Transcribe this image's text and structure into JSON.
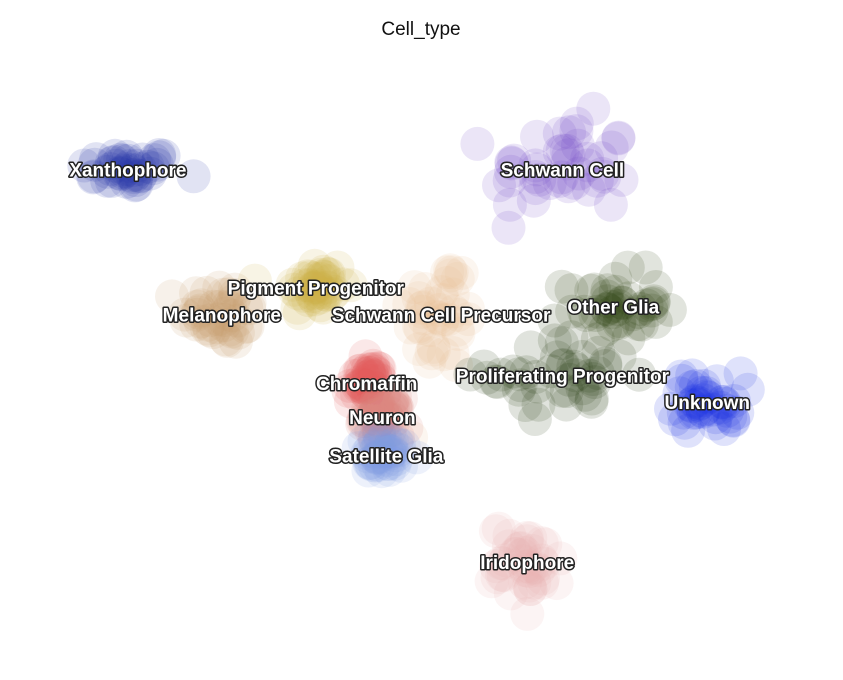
{
  "chart_data": {
    "type": "scatter",
    "title": "Cell_type",
    "xlabel": "",
    "ylabel": "",
    "grid": false,
    "legend": "on-data",
    "xlim": [
      -10,
      10
    ],
    "ylim": [
      -8,
      8
    ],
    "series": [
      {
        "name": "Xanthophore",
        "color": "#2d3aa8",
        "center": [
          -7.5,
          5.0
        ],
        "spread": [
          1.1,
          0.45
        ]
      },
      {
        "name": "Melanophore",
        "color": "#c49a6c",
        "center": [
          -5.1,
          1.2
        ],
        "spread": [
          0.9,
          0.75
        ]
      },
      {
        "name": "Pigment Progenitor",
        "color": "#cdb24a",
        "center": [
          -2.7,
          1.9
        ],
        "spread": [
          0.7,
          0.7
        ]
      },
      {
        "name": "Schwann Cell Precursor",
        "color": "#e8bf94",
        "center": [
          0.5,
          1.2
        ],
        "spread": [
          0.9,
          1.4
        ]
      },
      {
        "name": "Schwann Cell",
        "color": "#7444c8",
        "center": [
          3.6,
          5.0
        ],
        "spread": [
          1.6,
          1.2
        ]
      },
      {
        "name": "Other Glia",
        "color": "#2c3d0e",
        "center": [
          4.9,
          1.4
        ],
        "spread": [
          1.1,
          0.8
        ]
      },
      {
        "name": "Proliferating Progenitor",
        "color": "#263a0b",
        "center": [
          3.6,
          -0.4
        ],
        "spread": [
          1.7,
          0.9
        ]
      },
      {
        "name": "Unknown",
        "color": "#1a2fe0",
        "center": [
          7.3,
          -1.1
        ],
        "spread": [
          0.8,
          0.7
        ]
      },
      {
        "name": "Chromaffin",
        "color": "#e05a5a",
        "center": [
          -1.4,
          -0.6
        ],
        "spread": [
          0.45,
          0.5
        ]
      },
      {
        "name": "Neuron",
        "color": "#d98880",
        "center": [
          -1.0,
          -1.5
        ],
        "spread": [
          0.4,
          0.45
        ]
      },
      {
        "name": "Satellite Glia",
        "color": "#7f9ee6",
        "center": [
          -0.9,
          -2.5
        ],
        "spread": [
          0.8,
          0.45
        ]
      },
      {
        "name": "Iridophore",
        "color": "#e8b3b3",
        "center": [
          2.7,
          -5.3
        ],
        "spread": [
          0.8,
          0.9
        ]
      }
    ]
  }
}
